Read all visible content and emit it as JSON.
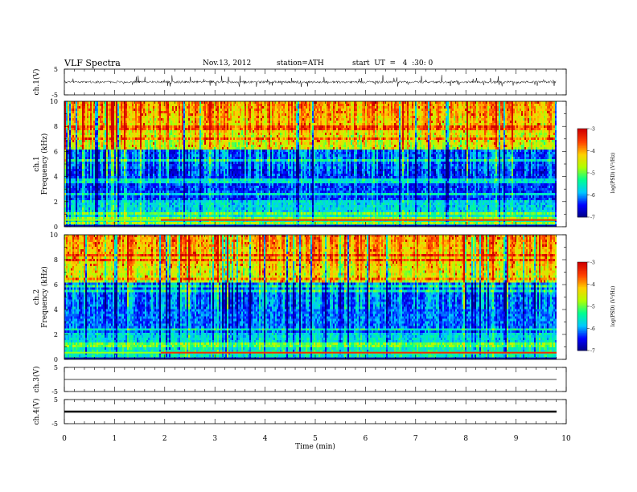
{
  "header": {
    "title": "VLF Spectra",
    "date": "Nov.13, 2012",
    "station": "station=ATH",
    "start": "start  UT  =   4  :30: 0"
  },
  "chart_data": [
    {
      "type": "line",
      "name": "ch.1 waveform",
      "ylabel": "ch.1(V)",
      "ylim": [
        -5,
        5
      ],
      "yticks": [
        5,
        -5
      ],
      "xlim": [
        0,
        10
      ],
      "description_values": "continuous noisy waveform, baseline near 0 V with spikes up to about +/-3 V, spanning 0 to 9.8 min"
    },
    {
      "type": "heatmap",
      "name": "ch.1 spectrogram",
      "ylabel": "ch.1\nFrequency (kHz)",
      "ylim": [
        0,
        10
      ],
      "yticks": [
        0,
        2,
        4,
        6,
        8,
        10
      ],
      "xlim": [
        0,
        9.8
      ],
      "colorbar": {
        "label": "log(PSD) (V²/Hz)",
        "ticks": [
          -3,
          -4,
          -5,
          -6,
          -7
        ],
        "range": [
          -7,
          -3
        ]
      }
    },
    {
      "type": "heatmap",
      "name": "ch.2 spectrogram",
      "ylabel": "ch.2\nFrequency (kHz)",
      "ylim": [
        0,
        10
      ],
      "yticks": [
        0,
        2,
        4,
        6,
        8,
        10
      ],
      "xlim": [
        0,
        9.8
      ],
      "colorbar": {
        "label": "log(PSD) (V²/Hz)",
        "ticks": [
          -3,
          -4,
          -5,
          -6,
          -7
        ],
        "range": [
          -7,
          -3
        ]
      }
    },
    {
      "type": "line",
      "name": "ch.3 waveform",
      "ylabel": "ch.3(V)",
      "ylim": [
        -5,
        5
      ],
      "yticks": [
        5,
        -5
      ],
      "level": 0,
      "xlim": [
        0,
        9.8
      ]
    },
    {
      "type": "line",
      "name": "ch.4 waveform",
      "ylabel": "ch.4(V)",
      "ylim": [
        -5,
        5
      ],
      "yticks": [
        5,
        -5
      ],
      "level": 0,
      "xlim": [
        0,
        9.8
      ]
    }
  ],
  "xaxis": {
    "label": "Time  (min)",
    "ticks": [
      "0",
      "1",
      "2",
      "3",
      "4",
      "5",
      "6",
      "7",
      "8",
      "9",
      "10"
    ]
  },
  "colors": {
    "scale": [
      "#000080",
      "#0000ff",
      "#00c8ff",
      "#00ff90",
      "#b0ff00",
      "#ffd000",
      "#ff4000",
      "#d00000"
    ]
  }
}
